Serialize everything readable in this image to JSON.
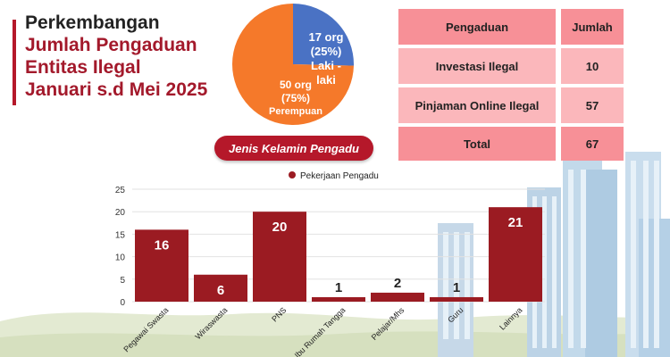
{
  "title": {
    "line1": "Perkembangan",
    "line2": "Jumlah Pengaduan",
    "line3": "Entitas Ilegal",
    "line4": "Januari s.d Mei 2025"
  },
  "gender_chart": {
    "label": "Jenis Kelamin Pengadu",
    "slices": [
      {
        "count_text": "17 org",
        "pct_text": "(25%)",
        "name": "Laki - laki",
        "value": 17,
        "color": "#4a72c4"
      },
      {
        "count_text": "50 org",
        "pct_text": "(75%)",
        "name": "Perempuan",
        "value": 50,
        "color": "#f5792a"
      }
    ]
  },
  "table": {
    "headers": [
      "Pengaduan",
      "Jumlah"
    ],
    "rows": [
      [
        "Investasi Ilegal",
        "10"
      ],
      [
        "Pinjaman Online Ilegal",
        "57"
      ]
    ],
    "total": [
      "Total",
      "67"
    ]
  },
  "colors": {
    "accent": "#a3192b",
    "bar": "#9b1b22",
    "table_header": "#f79097",
    "table_row": "#fbb7bb"
  },
  "chart_data": {
    "type": "bar",
    "legend": "Pekerjaan Pengadu",
    "categories": [
      "Pegawai Swasta",
      "Wiraswasta",
      "PNS",
      "Ibu Rumah Tangga",
      "Pelajar/Mhs",
      "Guru",
      "Lainnya"
    ],
    "series": [
      {
        "name": "Pekerjaan Pengadu",
        "values": [
          16,
          6,
          20,
          1,
          2,
          1,
          21
        ]
      }
    ],
    "ylim": [
      0,
      25
    ],
    "yticks": [
      0,
      5,
      10,
      15,
      20,
      25
    ],
    "data_labels": true,
    "grid": true
  }
}
